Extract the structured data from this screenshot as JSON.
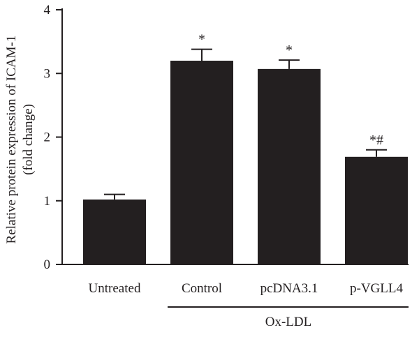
{
  "chart_data": {
    "type": "bar",
    "ylabel_line1": "Relative protein expression of ICAM-1",
    "ylabel_line2": "(fold change)",
    "ylim": [
      0,
      4
    ],
    "yticks": [
      0,
      1,
      2,
      3,
      4
    ],
    "categories": [
      "Untreated",
      "Control",
      "pcDNA3.1",
      "p-VGLL4"
    ],
    "values": [
      1.02,
      3.2,
      3.07,
      1.69
    ],
    "errors": [
      0.08,
      0.18,
      0.14,
      0.11
    ],
    "annotations": [
      "",
      "*",
      "*",
      "*#"
    ],
    "group_label": "Ox-LDL",
    "group_categories": [
      "Control",
      "pcDNA3.1",
      "p-VGLL4"
    ],
    "bar_color": "#231f20",
    "grid": false,
    "legend": "none"
  }
}
